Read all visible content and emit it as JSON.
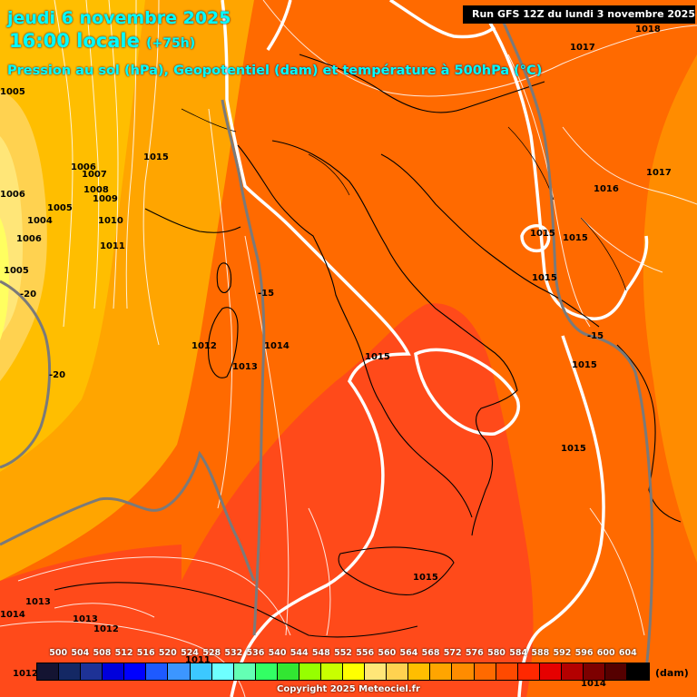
{
  "header": {
    "date": "jeudi 6 novembre 2025",
    "time": "16:00 locale",
    "lead": "(+75h)",
    "subtitle": "Pression au sol (hPa), Geopotentiel (dam) et température à 500hPa (°C)",
    "run": "Run GFS 12Z du lundi 3 novembre 2025"
  },
  "pressure_labels": [
    "1018",
    "1017",
    "1017",
    "1016",
    "1015",
    "1015",
    "1015",
    "1015",
    "1015",
    "1015",
    "1015",
    "1015",
    "1015",
    "1014",
    "1013",
    "1012",
    "1006",
    "1007",
    "1008",
    "1009",
    "1010",
    "1011",
    "1005",
    "1006",
    "1004",
    "1005",
    "1006",
    "1005",
    "1013",
    "1013",
    "1014",
    "1013",
    "1012",
    "1012",
    "1011",
    "1014"
  ],
  "temperature_labels": [
    "-20",
    "-20",
    "-15",
    "-15"
  ],
  "legend": {
    "values": [
      "500",
      "504",
      "508",
      "512",
      "516",
      "520",
      "524",
      "528",
      "532",
      "536",
      "540",
      "544",
      "548",
      "552",
      "556",
      "560",
      "564",
      "568",
      "572",
      "576",
      "580",
      "584",
      "588",
      "592",
      "596",
      "600",
      "604"
    ],
    "colors": [
      "#141432",
      "#142864",
      "#1e3296",
      "#0000dc",
      "#0000ff",
      "#1e5aff",
      "#3c96ff",
      "#3cc8ff",
      "#6effff",
      "#64ffb4",
      "#32ff64",
      "#32e632",
      "#96ff00",
      "#c8ff00",
      "#ffff00",
      "#ffe678",
      "#ffd250",
      "#ffbe00",
      "#ffa500",
      "#ff8c00",
      "#ff6a00",
      "#ff4a00",
      "#ff2800",
      "#e60000",
      "#b40000",
      "#7d0000",
      "#550000",
      "#000000"
    ],
    "unit": "(dam)"
  },
  "copyright": "Copyright 2025 Meteociel.fr"
}
